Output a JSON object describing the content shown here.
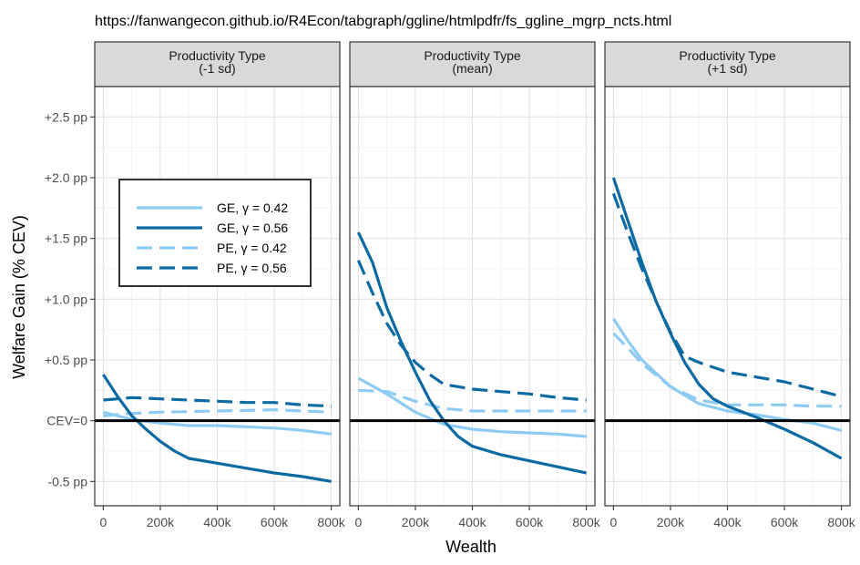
{
  "chart_data": {
    "type": "line",
    "title": "https://fanwangecon.github.io/R4Econ/tabgraph/ggline/htmlpdfr/fs_ggline_mgrp_ncts.html",
    "xlabel": "Wealth",
    "ylabel": "Welfare Gain (% CEV)",
    "xlim": [
      -30000,
      830000
    ],
    "ylim": [
      -0.7,
      2.75
    ],
    "x_ticks": [
      0,
      200000,
      400000,
      600000,
      800000
    ],
    "x_tick_labels": [
      "0",
      "200k",
      "400k",
      "600k",
      "800k"
    ],
    "y_ticks": [
      -0.5,
      0,
      0.5,
      1.0,
      1.5,
      2.0,
      2.5
    ],
    "y_tick_labels": [
      "-0.5 pp",
      "CEV=0",
      "+0.5 pp",
      "+1.0 pp",
      "+1.5 pp",
      "+2.0 pp",
      "+2.5 pp"
    ],
    "reference_line_y": 0,
    "grid": true,
    "legend_position": "inside-left",
    "colors": {
      "light": "#8ecbf3",
      "dark": "#0a6aa1",
      "zero_line": "#000000",
      "strip_bg": "#d9d9d9"
    },
    "legend": [
      {
        "label": "GE, γ = 0.42",
        "color": "#8ecbf3",
        "dash": "solid"
      },
      {
        "label": "GE, γ = 0.56",
        "color": "#0a6aa1",
        "dash": "solid"
      },
      {
        "label": "PE, γ = 0.42",
        "color": "#8ecbf3",
        "dash": "dashed"
      },
      {
        "label": "PE, γ = 0.56",
        "color": "#0a6aa1",
        "dash": "dashed"
      }
    ],
    "panels": [
      {
        "strip": [
          "Productivity Type",
          "(-1 sd)"
        ],
        "series": [
          {
            "key": "PE, γ = 0.42",
            "x": [
              0,
              100000,
              200000,
              400000,
              600000,
              800000
            ],
            "y": [
              0.04,
              0.06,
              0.07,
              0.08,
              0.09,
              0.07
            ]
          },
          {
            "key": "GE, γ = 0.42",
            "x": [
              0,
              50000,
              100000,
              200000,
              300000,
              400000,
              500000,
              600000,
              700000,
              800000
            ],
            "y": [
              0.07,
              0.04,
              0.01,
              -0.02,
              -0.04,
              -0.04,
              -0.05,
              -0.06,
              -0.08,
              -0.11
            ]
          },
          {
            "key": "PE, γ = 0.56",
            "x": [
              0,
              100000,
              200000,
              300000,
              400000,
              500000,
              600000,
              700000,
              800000
            ],
            "y": [
              0.17,
              0.19,
              0.18,
              0.17,
              0.16,
              0.15,
              0.15,
              0.13,
              0.12
            ]
          },
          {
            "key": "GE, γ = 0.56",
            "x": [
              0,
              50000,
              100000,
              150000,
              200000,
              250000,
              300000,
              400000,
              500000,
              600000,
              700000,
              800000
            ],
            "y": [
              0.38,
              0.2,
              0.04,
              -0.07,
              -0.17,
              -0.25,
              -0.31,
              -0.35,
              -0.39,
              -0.43,
              -0.46,
              -0.5
            ]
          }
        ]
      },
      {
        "strip": [
          "Productivity Type",
          "(mean)"
        ],
        "series": [
          {
            "key": "PE, γ = 0.42",
            "x": [
              0,
              100000,
              200000,
              300000,
              400000,
              500000,
              600000,
              800000
            ],
            "y": [
              0.25,
              0.24,
              0.16,
              0.1,
              0.08,
              0.08,
              0.08,
              0.08
            ]
          },
          {
            "key": "GE, γ = 0.42",
            "x": [
              0,
              100000,
              200000,
              300000,
              400000,
              500000,
              600000,
              700000,
              800000
            ],
            "y": [
              0.35,
              0.22,
              0.07,
              -0.03,
              -0.07,
              -0.09,
              -0.1,
              -0.11,
              -0.13
            ]
          },
          {
            "key": "PE, γ = 0.56",
            "x": [
              0,
              50000,
              100000,
              150000,
              200000,
              250000,
              300000,
              400000,
              500000,
              600000,
              700000,
              800000
            ],
            "y": [
              1.32,
              1.05,
              0.8,
              0.62,
              0.48,
              0.38,
              0.3,
              0.26,
              0.24,
              0.22,
              0.19,
              0.17
            ]
          },
          {
            "key": "GE, γ = 0.56",
            "x": [
              0,
              50000,
              100000,
              150000,
              200000,
              250000,
              300000,
              350000,
              400000,
              500000,
              600000,
              700000,
              800000
            ],
            "y": [
              1.55,
              1.3,
              0.93,
              0.65,
              0.4,
              0.17,
              0.0,
              -0.13,
              -0.21,
              -0.28,
              -0.33,
              -0.38,
              -0.43
            ]
          }
        ]
      },
      {
        "strip": [
          "Productivity Type",
          "(+1 sd)"
        ],
        "series": [
          {
            "key": "PE, γ = 0.42",
            "x": [
              0,
              50000,
              100000,
              200000,
              300000,
              400000,
              500000,
              600000,
              700000,
              800000
            ],
            "y": [
              0.72,
              0.6,
              0.47,
              0.28,
              0.17,
              0.13,
              0.13,
              0.13,
              0.12,
              0.12
            ]
          },
          {
            "key": "GE, γ = 0.42",
            "x": [
              0,
              50000,
              100000,
              200000,
              300000,
              400000,
              500000,
              600000,
              700000,
              800000
            ],
            "y": [
              0.84,
              0.66,
              0.5,
              0.28,
              0.14,
              0.08,
              0.05,
              0.01,
              -0.02,
              -0.08
            ]
          },
          {
            "key": "PE, γ = 0.56",
            "x": [
              0,
              50000,
              100000,
              150000,
              200000,
              250000,
              300000,
              400000,
              500000,
              600000,
              700000,
              800000
            ],
            "y": [
              1.87,
              1.55,
              1.25,
              0.98,
              0.73,
              0.53,
              0.48,
              0.4,
              0.36,
              0.32,
              0.26,
              0.2
            ]
          },
          {
            "key": "GE, γ = 0.56",
            "x": [
              0,
              50000,
              100000,
              150000,
              200000,
              250000,
              300000,
              350000,
              400000,
              500000,
              600000,
              700000,
              800000
            ],
            "y": [
              2.0,
              1.65,
              1.3,
              0.98,
              0.72,
              0.48,
              0.3,
              0.18,
              0.12,
              0.03,
              -0.07,
              -0.18,
              -0.31
            ]
          }
        ]
      }
    ]
  }
}
